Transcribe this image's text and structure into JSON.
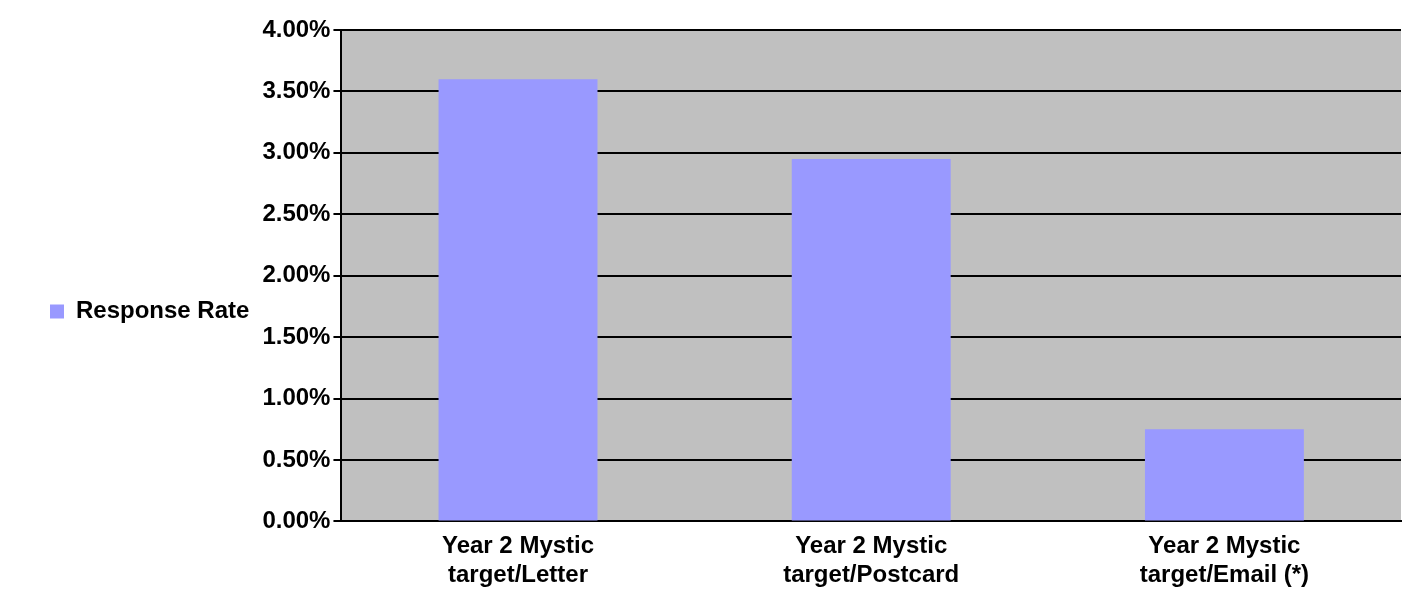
{
  "chart_data": {
    "type": "bar",
    "categories": [
      "Year 2 Mystic target/Letter",
      "Year 2 Mystic target/Postcard",
      "Year 2 Mystic target/Email (*)"
    ],
    "series": [
      {
        "name": "Response Rate",
        "color": "#9999ff",
        "values": [
          3.6,
          2.95,
          0.75
        ]
      }
    ],
    "ylim": [
      0,
      4
    ],
    "yticks": [
      {
        "value": 0,
        "label": "0.00%"
      },
      {
        "value": 0.5,
        "label": "0.50%"
      },
      {
        "value": 1,
        "label": "1.00%"
      },
      {
        "value": 1.5,
        "label": "1.50%"
      },
      {
        "value": 2,
        "label": "2.00%"
      },
      {
        "value": 2.5,
        "label": "2.50%"
      },
      {
        "value": 3,
        "label": "3.00%"
      },
      {
        "value": 3.5,
        "label": "3.50%"
      },
      {
        "value": 4,
        "label": "4.00%"
      }
    ],
    "grid": "y",
    "legend": "left"
  }
}
